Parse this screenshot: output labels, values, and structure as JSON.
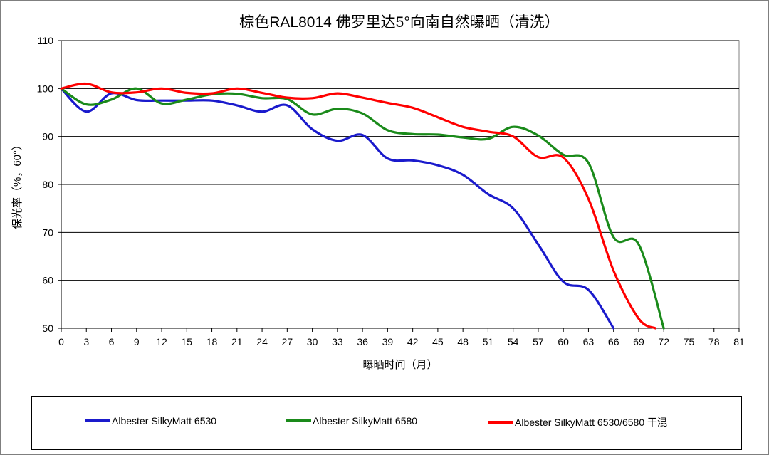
{
  "chart_data": {
    "type": "line",
    "title": "棕色RAL8014 佛罗里达5°向南自然曝晒（清洗）",
    "xlabel": "曝晒时间（月）",
    "ylabel": "保光率（%，60°）",
    "xlim": [
      0,
      81
    ],
    "ylim": [
      50,
      110
    ],
    "xticks": [
      "0",
      "3",
      "6",
      "9",
      "12",
      "15",
      "18",
      "21",
      "24",
      "27",
      "30",
      "33",
      "36",
      "39",
      "42",
      "45",
      "48",
      "51",
      "54",
      "57",
      "60",
      "63",
      "66",
      "69",
      "72",
      "75",
      "78",
      "81"
    ],
    "yticks": [
      "50",
      "60",
      "70",
      "80",
      "90",
      "100",
      "110"
    ],
    "grid": "horizontal",
    "legend_position": "bottom",
    "series": [
      {
        "name": "Albester SilkyMatt 6530",
        "color": "#1a1acc",
        "x": [
          0,
          3,
          6,
          9,
          12,
          15,
          18,
          21,
          24,
          27,
          30,
          33,
          36,
          39,
          42,
          45,
          48,
          51,
          54,
          57,
          60,
          63,
          66
        ],
        "y": [
          100,
          95.2,
          99,
          97.6,
          97.5,
          97.5,
          97.5,
          96.5,
          95.2,
          96.5,
          91.5,
          89.1,
          90.3,
          85.4,
          85,
          84,
          82,
          78,
          75,
          67.5,
          59.7,
          58,
          50
        ]
      },
      {
        "name": "Albester SilkyMatt 6580",
        "color": "#1a8a1a",
        "x": [
          0,
          3,
          6,
          9,
          12,
          15,
          18,
          21,
          24,
          27,
          30,
          33,
          36,
          39,
          42,
          45,
          48,
          51,
          54,
          57,
          60,
          63,
          66,
          69,
          72
        ],
        "y": [
          100,
          96.7,
          97.7,
          100,
          96.9,
          97.7,
          98.8,
          98.9,
          98,
          97.8,
          94.6,
          95.8,
          94.8,
          91.3,
          90.5,
          90.4,
          89.8,
          89.5,
          92,
          90.2,
          86.2,
          84.5,
          69,
          67.5,
          50
        ]
      },
      {
        "name": "Albester SilkyMatt 6530/6580 干混",
        "color": "#ff0000",
        "x": [
          0,
          3,
          6,
          9,
          12,
          15,
          18,
          21,
          24,
          27,
          30,
          33,
          36,
          39,
          42,
          45,
          48,
          51,
          54,
          57,
          60,
          63,
          66,
          69,
          71
        ],
        "y": [
          100,
          101,
          99.2,
          99.2,
          100,
          99.1,
          99,
          100,
          99.1,
          98.1,
          98,
          99,
          98.1,
          97,
          96,
          94,
          92,
          91,
          90,
          85.7,
          85.6,
          77,
          62,
          52,
          50
        ]
      }
    ]
  }
}
